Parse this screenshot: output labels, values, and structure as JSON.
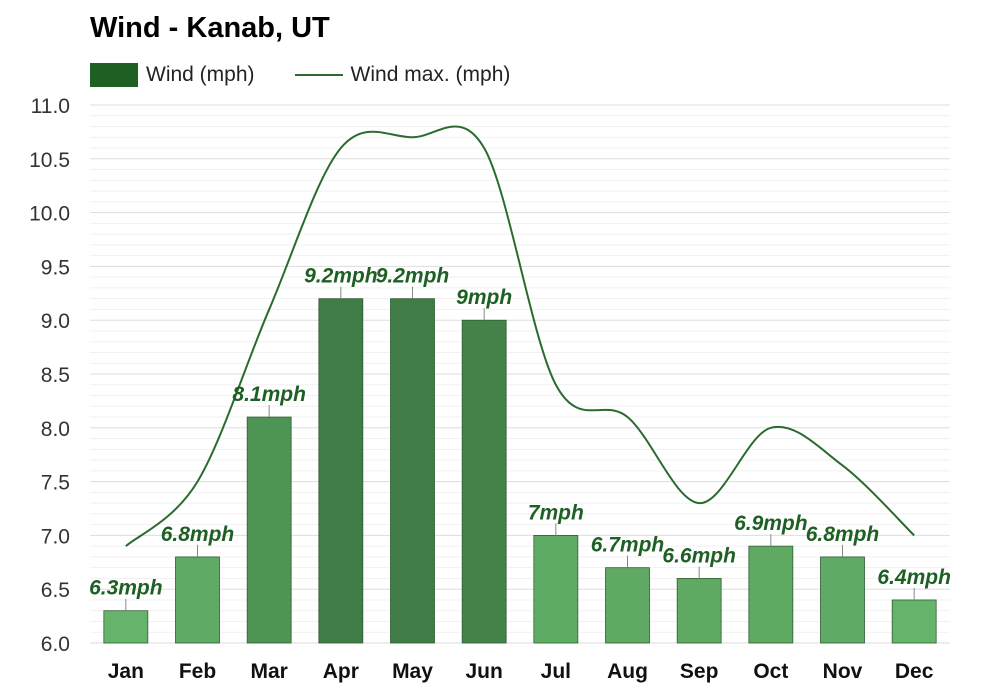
{
  "chart_data": {
    "type": "bar",
    "title": "Wind - Kanab, UT",
    "categories": [
      "Jan",
      "Feb",
      "Mar",
      "Apr",
      "May",
      "Jun",
      "Jul",
      "Aug",
      "Sep",
      "Oct",
      "Nov",
      "Dec"
    ],
    "series": [
      {
        "name": "Wind (mph)",
        "type": "bar",
        "values": [
          6.3,
          6.8,
          8.1,
          9.2,
          9.2,
          9.0,
          7.0,
          6.7,
          6.6,
          6.9,
          6.8,
          6.4
        ],
        "labels": [
          "6.3mph",
          "6.8mph",
          "8.1mph",
          "9.2mph",
          "9.2mph",
          "9mph",
          "7mph",
          "6.7mph",
          "6.6mph",
          "6.9mph",
          "6.8mph",
          "6.4mph"
        ],
        "colors": [
          "#66b36b",
          "#5faa64",
          "#4e9454",
          "#3f7c46",
          "#3f7c46",
          "#44824a",
          "#5fad64",
          "#5fa963",
          "#5fa963",
          "#5fa963",
          "#5faa64",
          "#66b36b"
        ]
      },
      {
        "name": "Wind max. (mph)",
        "type": "line",
        "values": [
          6.9,
          7.5,
          9.1,
          10.6,
          10.7,
          10.6,
          8.4,
          8.1,
          7.3,
          8.0,
          7.65,
          7.0
        ],
        "color": "#2b6b2f"
      }
    ],
    "yticks": [
      "6.0",
      "6.5",
      "7.0",
      "7.5",
      "8.0",
      "8.5",
      "9.0",
      "9.5",
      "10.0",
      "10.5",
      "11.0"
    ],
    "ylim": [
      6.0,
      11.0
    ],
    "grid": true,
    "legend": "top-left"
  },
  "legend_colors": {
    "bar": "#1e5f24",
    "line": "#2b6b2f"
  }
}
